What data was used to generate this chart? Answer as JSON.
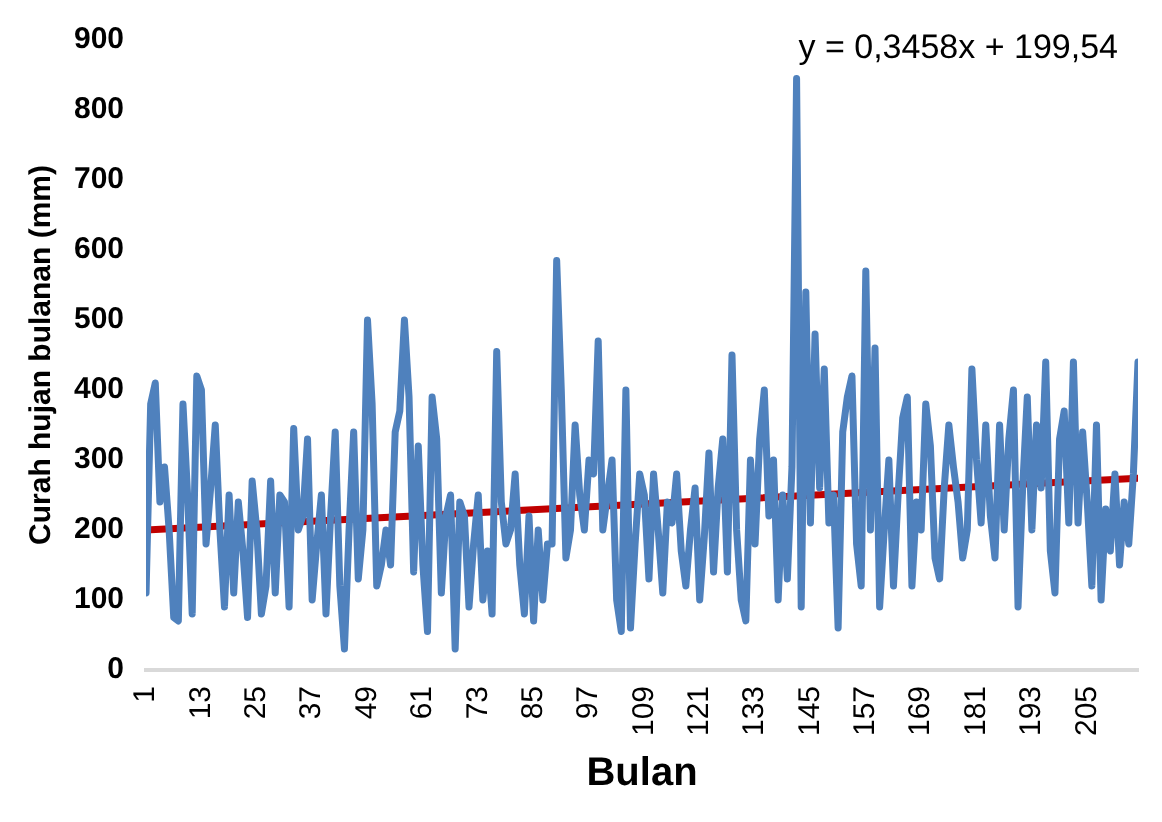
{
  "chart_data": {
    "type": "line",
    "xlabel": "Bulan",
    "ylabel": "Curah hujan bulanan (mm)",
    "annotations": [
      "y = 0,3458x + 199,54"
    ],
    "x": [
      1,
      2,
      3,
      4,
      5,
      6,
      7,
      8,
      9,
      10,
      11,
      12,
      13,
      14,
      15,
      16,
      17,
      18,
      19,
      20,
      21,
      22,
      23,
      24,
      25,
      26,
      27,
      28,
      29,
      30,
      31,
      32,
      33,
      34,
      35,
      36,
      37,
      38,
      39,
      40,
      41,
      42,
      43,
      44,
      45,
      46,
      47,
      48,
      49,
      50,
      51,
      52,
      53,
      54,
      55,
      56,
      57,
      58,
      59,
      60,
      61,
      62,
      63,
      64,
      65,
      66,
      67,
      68,
      69,
      70,
      71,
      72,
      73,
      74,
      75,
      76,
      77,
      78,
      79,
      80,
      81,
      82,
      83,
      84,
      85,
      86,
      87,
      88,
      89,
      90,
      91,
      92,
      93,
      94,
      95,
      96,
      97,
      98,
      99,
      100,
      101,
      102,
      103,
      104,
      105,
      106,
      107,
      108,
      109,
      110,
      111,
      112,
      113,
      114,
      115,
      116,
      117,
      118,
      119,
      120,
      121,
      122,
      123,
      124,
      125,
      126,
      127,
      128,
      129,
      130,
      131,
      132,
      133,
      134,
      135,
      136,
      137,
      138,
      139,
      140,
      141,
      142,
      143,
      144,
      145,
      146,
      147,
      148,
      149,
      150,
      151,
      152,
      153,
      154,
      155,
      156,
      157,
      158,
      159,
      160,
      161,
      162,
      163,
      164,
      165,
      166,
      167,
      168,
      169,
      170,
      171,
      172,
      173,
      174,
      175,
      176,
      177,
      178,
      179,
      180,
      181,
      182,
      183,
      184,
      185,
      186,
      187,
      188,
      189,
      190,
      191,
      192,
      193,
      194,
      195,
      196,
      197,
      198,
      199,
      200,
      201,
      202,
      203,
      204,
      205,
      206,
      207,
      208,
      209,
      210,
      211,
      212,
      213,
      214,
      215,
      216
    ],
    "series": [
      {
        "color": "#4f81bd",
        "values": [
          110,
          380,
          410,
          240,
          290,
          200,
          75,
          70,
          380,
          250,
          80,
          420,
          400,
          180,
          260,
          350,
          200,
          90,
          250,
          110,
          240,
          170,
          75,
          270,
          200,
          80,
          120,
          270,
          110,
          250,
          240,
          90,
          345,
          200,
          220,
          330,
          100,
          180,
          250,
          80,
          220,
          340,
          120,
          30,
          200,
          340,
          130,
          200,
          500,
          380,
          120,
          150,
          200,
          150,
          340,
          370,
          500,
          390,
          140,
          320,
          150,
          55,
          390,
          330,
          110,
          220,
          250,
          30,
          240,
          220,
          90,
          180,
          250,
          100,
          170,
          80,
          455,
          240,
          180,
          200,
          280,
          150,
          80,
          220,
          70,
          200,
          100,
          180,
          180,
          585,
          400,
          160,
          200,
          350,
          250,
          200,
          300,
          280,
          470,
          200,
          250,
          300,
          100,
          55,
          400,
          60,
          180,
          280,
          250,
          130,
          280,
          200,
          110,
          240,
          210,
          280,
          170,
          120,
          200,
          260,
          100,
          190,
          310,
          140,
          260,
          330,
          140,
          450,
          200,
          100,
          70,
          300,
          180,
          330,
          400,
          220,
          300,
          100,
          250,
          130,
          290,
          845,
          90,
          540,
          210,
          480,
          260,
          430,
          210,
          250,
          60,
          340,
          390,
          420,
          180,
          120,
          570,
          200,
          460,
          90,
          200,
          300,
          120,
          250,
          360,
          390,
          120,
          240,
          200,
          380,
          320,
          160,
          130,
          260,
          350,
          290,
          240,
          160,
          200,
          430,
          300,
          210,
          350,
          220,
          160,
          350,
          200,
          330,
          400,
          90,
          260,
          390,
          200,
          350,
          260,
          440,
          170,
          110,
          330,
          370,
          210,
          440,
          210,
          340,
          240,
          120,
          350,
          100,
          230,
          170,
          280,
          150,
          240,
          180,
          280,
          440
        ]
      },
      {
        "type": "line",
        "color": "#c00000",
        "x": [
          1,
          216
        ],
        "values": [
          200,
          274
        ]
      }
    ],
    "xlim": [
      1,
      216
    ],
    "xticks": [
      1,
      13,
      25,
      37,
      49,
      61,
      73,
      85,
      97,
      109,
      121,
      133,
      145,
      157,
      169,
      181,
      193,
      205
    ],
    "ylim": [
      0,
      900
    ],
    "yticks": [
      0,
      100,
      200,
      300,
      400,
      500,
      600,
      700,
      800,
      900
    ],
    "grid": false,
    "legend": false,
    "marker": "none",
    "line_style": "solid"
  }
}
